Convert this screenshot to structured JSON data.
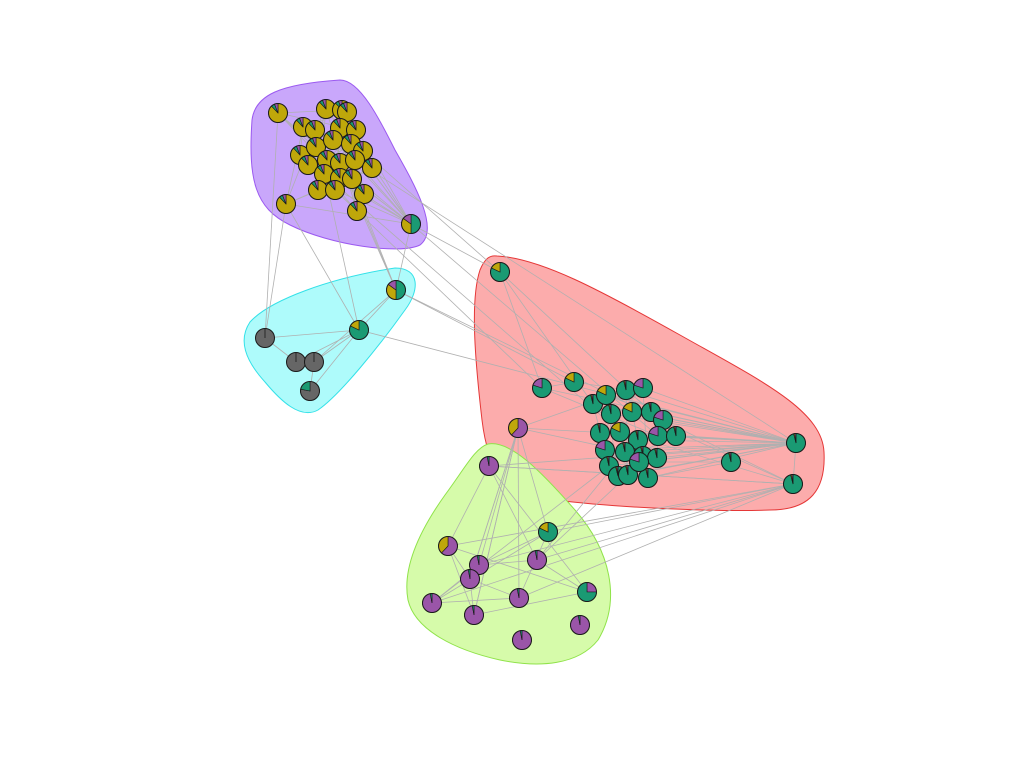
{
  "colors": {
    "yellow": "#BFA70A",
    "green": "#1A9A73",
    "purple": "#9A55A8",
    "gray": "#666666",
    "region_purple_fill": "#C9A7FB",
    "region_purple_stroke": "#9B59F0",
    "region_cyan_fill": "#AEFBFB",
    "region_cyan_stroke": "#33E1E8",
    "region_red_fill": "#FCACAC",
    "region_red_stroke": "#E53737",
    "region_green_fill": "#D6FBAA",
    "region_green_stroke": "#90E34A"
  },
  "communities": [
    {
      "name": "community-purple",
      "fill": "#C9A7FB",
      "stroke": "#9B59F0"
    },
    {
      "name": "community-cyan",
      "fill": "#AEFBFB",
      "stroke": "#33E1E8"
    },
    {
      "name": "community-red",
      "fill": "#FCACAC",
      "stroke": "#E53737"
    },
    {
      "name": "community-green",
      "fill": "#D6FBAA",
      "stroke": "#90E34A"
    }
  ]
}
